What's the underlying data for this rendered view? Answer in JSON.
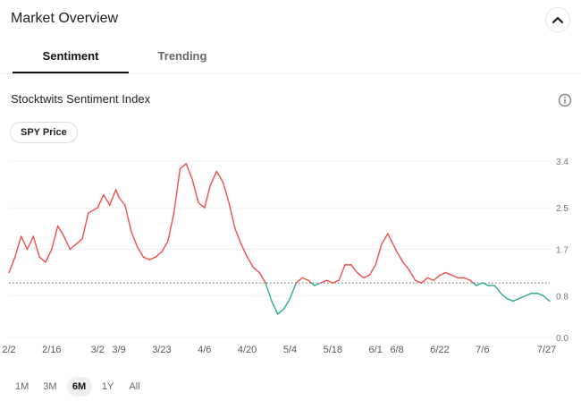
{
  "header": {
    "title": "Market Overview"
  },
  "tabs": [
    {
      "label": "Sentiment",
      "active": true
    },
    {
      "label": "Trending",
      "active": false
    }
  ],
  "section": {
    "title": "Stocktwits Sentiment Index",
    "chip_label": "SPY Price"
  },
  "icons": {
    "collapse": "chevron-up-icon",
    "info": "info-icon"
  },
  "colors": {
    "above_baseline": "#ef4f4a",
    "below_baseline": "#2eaf7f",
    "baseline": "#666666",
    "grid": "#f0f0f0"
  },
  "ranges": [
    {
      "label": "1M",
      "active": false
    },
    {
      "label": "3M",
      "active": false
    },
    {
      "label": "6M",
      "active": true
    },
    {
      "label": "1Y",
      "active": false
    },
    {
      "label": "All",
      "active": false
    }
  ],
  "chart_data": {
    "type": "line",
    "title": "",
    "xlabel": "",
    "ylabel": "",
    "ylim": [
      0.0,
      3.4
    ],
    "yticks": [
      "3.4",
      "2.5",
      "1.7",
      "0.8",
      "0.0"
    ],
    "baseline": 1.05,
    "grid": true,
    "x_ticks": [
      "2/2",
      "2/16",
      "3/2",
      "3/9",
      "3/23",
      "4/6",
      "4/20",
      "5/4",
      "5/18",
      "6/1",
      "6/8",
      "6/22",
      "7/6",
      "7/27"
    ],
    "series": [
      {
        "x": [
          "2/2",
          "2/4",
          "2/6",
          "2/8",
          "2/10",
          "2/12",
          "2/14",
          "2/16",
          "2/18",
          "2/20",
          "2/22",
          "2/24",
          "2/26",
          "2/28",
          "3/2",
          "3/4",
          "3/6",
          "3/8",
          "3/9",
          "3/11",
          "3/13",
          "3/15",
          "3/17",
          "3/19",
          "3/21",
          "3/23",
          "3/25",
          "3/27",
          "3/29",
          "3/31",
          "4/2",
          "4/4",
          "4/6",
          "4/8",
          "4/10",
          "4/12",
          "4/14",
          "4/16",
          "4/18",
          "4/20",
          "4/22",
          "4/24",
          "4/26",
          "4/28",
          "4/30",
          "5/2",
          "5/4",
          "5/6",
          "5/8",
          "5/10",
          "5/12",
          "5/14",
          "5/16",
          "5/18",
          "5/20",
          "5/22",
          "5/24",
          "5/26",
          "5/28",
          "5/30",
          "6/1",
          "6/3",
          "6/5",
          "6/8",
          "6/10",
          "6/12",
          "6/14",
          "6/16",
          "6/18",
          "6/20",
          "6/22",
          "6/24",
          "6/26",
          "6/28",
          "6/30",
          "7/2",
          "7/4",
          "7/6",
          "7/8",
          "7/10",
          "7/12",
          "7/14",
          "7/16",
          "7/18",
          "7/20",
          "7/22",
          "7/24",
          "7/26",
          "7/27",
          "7/28"
        ],
        "values": [
          1.25,
          1.55,
          1.95,
          1.7,
          1.95,
          1.55,
          1.45,
          1.7,
          2.15,
          1.95,
          1.7,
          1.8,
          1.9,
          2.4,
          2.5,
          2.75,
          2.55,
          2.85,
          2.7,
          2.55,
          2.05,
          1.75,
          1.55,
          1.5,
          1.55,
          1.65,
          1.85,
          2.4,
          3.25,
          3.35,
          3.05,
          2.6,
          2.5,
          2.95,
          3.2,
          3.0,
          2.6,
          2.1,
          1.8,
          1.55,
          1.35,
          1.25,
          1.05,
          0.7,
          0.45,
          0.55,
          0.75,
          1.05,
          1.15,
          1.1,
          1.0,
          1.05,
          1.1,
          1.05,
          1.1,
          1.4,
          1.4,
          1.25,
          1.15,
          1.2,
          1.4,
          1.8,
          2.0,
          1.65,
          1.45,
          1.3,
          1.1,
          1.05,
          1.15,
          1.1,
          1.2,
          1.25,
          1.2,
          1.15,
          1.15,
          1.1,
          1.0,
          1.05,
          1.0,
          1.0,
          0.85,
          0.75,
          0.7,
          0.75,
          0.8,
          0.85,
          0.85,
          0.8,
          0.75,
          0.7
        ]
      }
    ]
  }
}
